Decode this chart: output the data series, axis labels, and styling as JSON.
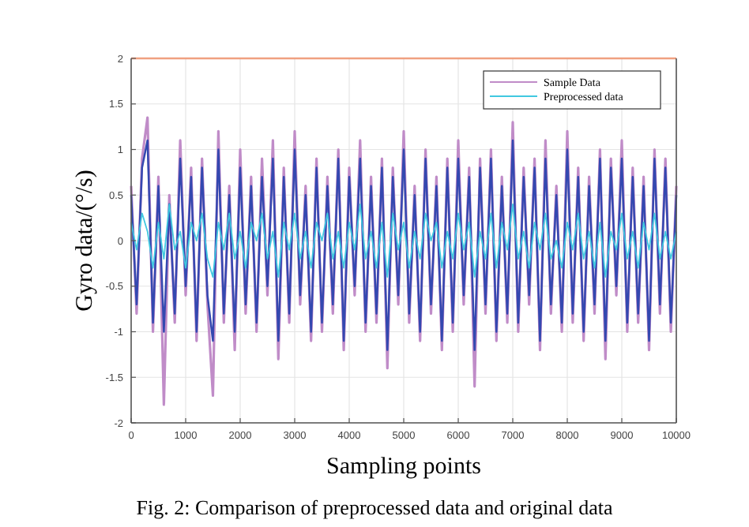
{
  "chart_data": {
    "type": "line",
    "xlabel": "Sampling points",
    "ylabel": "Gyro data/(°/s)",
    "annotations": [
      "Fig. 2: Comparison of preprocessed data and original data"
    ],
    "x": [
      0,
      100,
      200,
      300,
      400,
      500,
      600,
      700,
      800,
      900,
      1000,
      1100,
      1200,
      1300,
      1400,
      1500,
      1600,
      1700,
      1800,
      1900,
      2000,
      2100,
      2200,
      2300,
      2400,
      2500,
      2600,
      2700,
      2800,
      2900,
      3000,
      3100,
      3200,
      3300,
      3400,
      3500,
      3600,
      3700,
      3800,
      3900,
      4000,
      4100,
      4200,
      4300,
      4400,
      4500,
      4600,
      4700,
      4800,
      4900,
      5000,
      5100,
      5200,
      5300,
      5400,
      5500,
      5600,
      5700,
      5800,
      5900,
      6000,
      6100,
      6200,
      6300,
      6400,
      6500,
      6600,
      6700,
      6800,
      6900,
      7000,
      7100,
      7200,
      7300,
      7400,
      7500,
      7600,
      7700,
      7800,
      7900,
      8000,
      8100,
      8200,
      8300,
      8400,
      8500,
      8600,
      8700,
      8800,
      8900,
      9000,
      9100,
      9200,
      9300,
      9400,
      9500,
      9600,
      9700,
      9800,
      9900,
      10000
    ],
    "series": [
      {
        "name": "Sample Data",
        "color": "#c08cc8",
        "values": [
          0.6,
          -0.8,
          0.9,
          1.35,
          -1.0,
          0.7,
          -1.8,
          0.5,
          -0.9,
          1.1,
          -0.6,
          0.8,
          -1.1,
          0.9,
          -0.7,
          -1.7,
          1.2,
          -0.9,
          0.6,
          -1.2,
          1.0,
          -0.8,
          0.7,
          -1.0,
          0.9,
          -0.6,
          1.1,
          -1.3,
          0.8,
          -0.9,
          1.2,
          -0.7,
          0.6,
          -1.1,
          0.9,
          -1.0,
          0.7,
          -0.8,
          1.0,
          -1.2,
          0.8,
          -0.6,
          1.1,
          -1.0,
          0.7,
          -0.9,
          0.9,
          -1.4,
          0.8,
          -0.7,
          1.2,
          -0.9,
          0.6,
          -1.1,
          1.0,
          -0.8,
          0.7,
          -1.2,
          0.9,
          -1.0,
          1.1,
          -0.7,
          0.8,
          -1.6,
          0.9,
          -0.8,
          1.0,
          -1.1,
          0.7,
          -0.9,
          1.3,
          -1.0,
          0.8,
          -0.7,
          0.9,
          -1.2,
          1.1,
          -0.8,
          0.6,
          -1.0,
          1.2,
          -0.9,
          0.8,
          -1.1,
          0.7,
          -0.8,
          1.0,
          -1.3,
          0.9,
          -0.6,
          1.1,
          -1.0,
          0.8,
          -0.9,
          0.7,
          -1.2,
          1.0,
          -0.8,
          0.9,
          -1.0,
          0.6
        ]
      },
      {
        "color": "#3448b0",
        "values": [
          0.5,
          -0.7,
          0.8,
          1.1,
          -0.9,
          0.6,
          -1.0,
          0.4,
          -0.8,
          0.9,
          -0.5,
          0.7,
          -1.0,
          0.8,
          -0.6,
          -1.1,
          1.0,
          -0.8,
          0.5,
          -1.0,
          0.8,
          -0.7,
          0.6,
          -0.9,
          0.7,
          -0.5,
          0.9,
          -1.1,
          0.7,
          -0.8,
          1.0,
          -0.6,
          0.5,
          -1.0,
          0.8,
          -0.9,
          0.6,
          -0.7,
          0.9,
          -1.1,
          0.7,
          -0.5,
          0.9,
          -0.9,
          0.6,
          -0.8,
          0.8,
          -1.2,
          0.7,
          -0.6,
          1.0,
          -0.8,
          0.5,
          -1.0,
          0.9,
          -0.7,
          0.6,
          -1.1,
          0.8,
          -0.9,
          0.9,
          -0.6,
          0.7,
          -1.2,
          0.8,
          -0.7,
          0.9,
          -1.0,
          0.6,
          -0.8,
          1.1,
          -0.9,
          0.7,
          -0.6,
          0.8,
          -1.1,
          0.9,
          -0.7,
          0.5,
          -0.9,
          1.0,
          -0.8,
          0.7,
          -1.0,
          0.6,
          -0.7,
          0.9,
          -1.1,
          0.8,
          -0.5,
          0.9,
          -0.9,
          0.7,
          -0.8,
          0.6,
          -1.1,
          0.9,
          -0.7,
          0.8,
          -0.9,
          0.5
        ]
      },
      {
        "name": "Preprocessed data",
        "color": "#40c8e0",
        "values": [
          0.2,
          -0.1,
          0.3,
          0.1,
          -0.3,
          0.2,
          -0.2,
          0.4,
          -0.1,
          0.1,
          -0.3,
          0.2,
          0,
          0.3,
          -0.2,
          -0.4,
          0.2,
          -0.1,
          0.3,
          -0.2,
          0.1,
          -0.3,
          0.2,
          0,
          0.3,
          -0.2,
          0.1,
          -0.4,
          0.2,
          -0.1,
          0.3,
          -0.2,
          0.1,
          -0.3,
          0.2,
          0,
          0.3,
          -0.2,
          0.1,
          -0.3,
          0.2,
          -0.1,
          0.4,
          -0.2,
          0.1,
          -0.3,
          0.2,
          -0.4,
          0.3,
          -0.1,
          0.2,
          -0.3,
          0.1,
          -0.2,
          0.3,
          0,
          0.2,
          -0.3,
          0.1,
          -0.2,
          0.3,
          -0.1,
          0.2,
          -0.4,
          0.1,
          -0.2,
          0.3,
          -0.3,
          0.2,
          -0.1,
          0.4,
          -0.2,
          0.1,
          -0.3,
          0.2,
          -0.1,
          0.3,
          -0.2,
          0,
          -0.3,
          0.2,
          -0.1,
          0.3,
          -0.2,
          0.1,
          -0.3,
          0.2,
          -0.4,
          0.1,
          -0.1,
          0.3,
          -0.2,
          0.1,
          -0.3,
          0.2,
          -0.1,
          0.3,
          -0.2,
          0.1,
          -0.2,
          0.1
        ]
      }
    ],
    "xlim": [
      0,
      10000
    ],
    "xticks": [
      0,
      1000,
      2000,
      3000,
      4000,
      5000,
      6000,
      7000,
      8000,
      9000,
      10000
    ],
    "ylim": [
      -2,
      2
    ],
    "yticks": [
      -2,
      -1.5,
      -1,
      -0.5,
      0,
      0.5,
      1,
      1.5,
      2
    ],
    "ref_lines": [
      {
        "axis": "y",
        "value": 2,
        "color": "#f0a080"
      }
    ],
    "grid": true,
    "legend": "top right",
    "marker": "none",
    "line_style": "solid"
  }
}
